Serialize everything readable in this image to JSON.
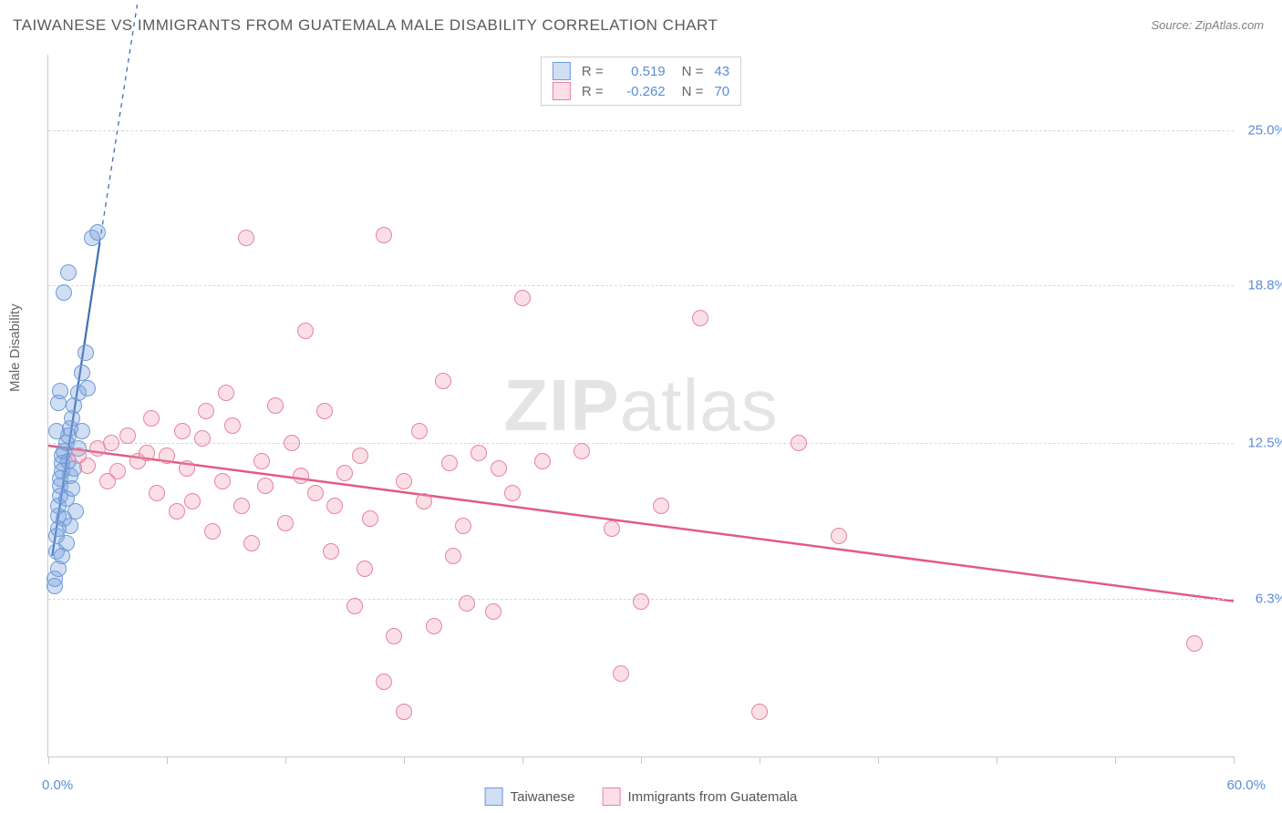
{
  "title": "TAIWANESE VS IMMIGRANTS FROM GUATEMALA MALE DISABILITY CORRELATION CHART",
  "source": "Source: ZipAtlas.com",
  "ylabel": "Male Disability",
  "watermark_zip": "ZIP",
  "watermark_atlas": "atlas",
  "chart": {
    "xlim": [
      0,
      60
    ],
    "ylim": [
      0,
      28
    ],
    "ytick_values": [
      6.3,
      12.5,
      18.8,
      25.0
    ],
    "ytick_labels": [
      "6.3%",
      "12.5%",
      "18.8%",
      "25.0%"
    ],
    "xtick_values": [
      0,
      6,
      12,
      18,
      24,
      30,
      36,
      42,
      48,
      54,
      60
    ],
    "xlabel_min": "0.0%",
    "xlabel_max": "60.0%",
    "grid_color": "#d9d9d9",
    "axis_color": "#c9c9c9",
    "marker_radius": 8,
    "marker_stroke": 1.5
  },
  "series": [
    {
      "id": "taiwanese",
      "label": "Taiwanese",
      "fill": "rgba(120,160,220,0.35)",
      "stroke": "#6f9bd8",
      "R": "0.519",
      "N": "43",
      "trend": {
        "x1": 0.2,
        "y1": 8.0,
        "x2": 2.6,
        "y2": 20.5,
        "dash_x2": 4.5,
        "dash_y2": 30.0,
        "color": "#3f6fb5",
        "width": 2.2
      },
      "points": [
        [
          0.3,
          7.1
        ],
        [
          0.3,
          6.8
        ],
        [
          0.4,
          8.2
        ],
        [
          0.4,
          8.8
        ],
        [
          0.5,
          9.1
        ],
        [
          0.5,
          9.6
        ],
        [
          0.5,
          10.0
        ],
        [
          0.6,
          10.4
        ],
        [
          0.6,
          10.8
        ],
        [
          0.6,
          11.1
        ],
        [
          0.7,
          11.4
        ],
        [
          0.7,
          11.7
        ],
        [
          0.7,
          12.0
        ],
        [
          0.8,
          12.2
        ],
        [
          0.8,
          9.5
        ],
        [
          0.9,
          12.5
        ],
        [
          0.9,
          10.3
        ],
        [
          1.0,
          12.8
        ],
        [
          1.0,
          11.8
        ],
        [
          1.1,
          13.1
        ],
        [
          1.1,
          11.2
        ],
        [
          1.2,
          13.5
        ],
        [
          1.2,
          10.7
        ],
        [
          1.3,
          14.0
        ],
        [
          1.3,
          11.5
        ],
        [
          1.5,
          14.5
        ],
        [
          1.5,
          12.3
        ],
        [
          1.7,
          15.3
        ],
        [
          1.7,
          13.0
        ],
        [
          1.9,
          16.1
        ],
        [
          2.0,
          14.7
        ],
        [
          0.8,
          18.5
        ],
        [
          1.0,
          19.3
        ],
        [
          2.2,
          20.7
        ],
        [
          2.5,
          20.9
        ],
        [
          0.5,
          14.1
        ],
        [
          0.6,
          14.6
        ],
        [
          0.4,
          13.0
        ],
        [
          0.9,
          8.5
        ],
        [
          1.1,
          9.2
        ],
        [
          1.4,
          9.8
        ],
        [
          0.5,
          7.5
        ],
        [
          0.7,
          8.0
        ]
      ]
    },
    {
      "id": "guatemala",
      "label": "Immigrants from Guatemala",
      "fill": "rgba(240,150,175,0.30)",
      "stroke": "#e882a0",
      "R": "-0.262",
      "N": "70",
      "trend": {
        "x1": 0,
        "y1": 12.4,
        "x2": 60,
        "y2": 6.2,
        "color": "#e35b82",
        "width": 2.5
      },
      "points": [
        [
          1.5,
          12.0
        ],
        [
          2.0,
          11.6
        ],
        [
          2.5,
          12.3
        ],
        [
          3.0,
          11.0
        ],
        [
          3.2,
          12.5
        ],
        [
          3.5,
          11.4
        ],
        [
          4.0,
          12.8
        ],
        [
          4.5,
          11.8
        ],
        [
          5.0,
          12.1
        ],
        [
          5.5,
          10.5
        ],
        [
          6.0,
          12.0
        ],
        [
          6.5,
          9.8
        ],
        [
          7.0,
          11.5
        ],
        [
          7.3,
          10.2
        ],
        [
          7.8,
          12.7
        ],
        [
          8.3,
          9.0
        ],
        [
          8.8,
          11.0
        ],
        [
          9.3,
          13.2
        ],
        [
          9.8,
          10.0
        ],
        [
          10.0,
          20.7
        ],
        [
          10.3,
          8.5
        ],
        [
          10.8,
          11.8
        ],
        [
          11.5,
          14.0
        ],
        [
          12.0,
          9.3
        ],
        [
          12.3,
          12.5
        ],
        [
          13.0,
          17.0
        ],
        [
          13.5,
          10.5
        ],
        [
          14.0,
          13.8
        ],
        [
          14.3,
          8.2
        ],
        [
          15.0,
          11.3
        ],
        [
          15.5,
          6.0
        ],
        [
          15.8,
          12.0
        ],
        [
          16.3,
          9.5
        ],
        [
          17.0,
          20.8
        ],
        [
          17.0,
          3.0
        ],
        [
          17.5,
          4.8
        ],
        [
          18.0,
          1.8
        ],
        [
          18.0,
          11.0
        ],
        [
          18.8,
          13.0
        ],
        [
          19.5,
          5.2
        ],
        [
          20.0,
          15.0
        ],
        [
          20.3,
          11.7
        ],
        [
          21.0,
          9.2
        ],
        [
          21.2,
          6.1
        ],
        [
          21.8,
          12.1
        ],
        [
          22.5,
          5.8
        ],
        [
          22.8,
          11.5
        ],
        [
          24.0,
          18.3
        ],
        [
          27.0,
          12.2
        ],
        [
          28.5,
          9.1
        ],
        [
          29.0,
          3.3
        ],
        [
          30.0,
          6.2
        ],
        [
          33.0,
          17.5
        ],
        [
          36.0,
          1.8
        ],
        [
          38.0,
          12.5
        ],
        [
          58.0,
          4.5
        ],
        [
          5.2,
          13.5
        ],
        [
          6.8,
          13.0
        ],
        [
          8.0,
          13.8
        ],
        [
          9.0,
          14.5
        ],
        [
          11.0,
          10.8
        ],
        [
          12.8,
          11.2
        ],
        [
          14.5,
          10.0
        ],
        [
          16.0,
          7.5
        ],
        [
          19.0,
          10.2
        ],
        [
          20.5,
          8.0
        ],
        [
          23.5,
          10.5
        ],
        [
          25.0,
          11.8
        ],
        [
          31.0,
          10.0
        ],
        [
          40.0,
          8.8
        ]
      ]
    }
  ],
  "legend_top": {
    "r_label": "R =",
    "n_label": "N ="
  }
}
